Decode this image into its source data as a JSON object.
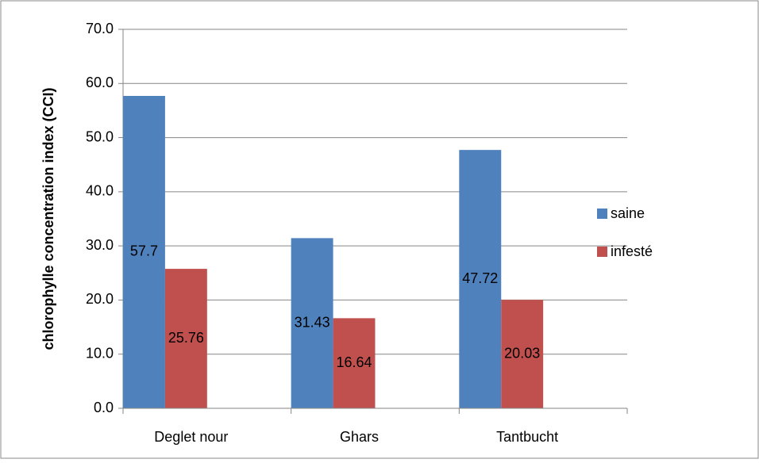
{
  "chart_data": {
    "type": "bar",
    "y_label": "chlorophylle concentration index (CCI)",
    "categories": [
      "Deglet nour",
      "Ghars",
      "Tantbucht"
    ],
    "series": [
      {
        "name": "saine",
        "color": "#4f81bd",
        "values": [
          57.7,
          31.43,
          47.72
        ]
      },
      {
        "name": "infesté",
        "color": "#c0504d",
        "values": [
          25.76,
          16.64,
          20.03
        ]
      }
    ],
    "ylim": [
      0,
      70
    ],
    "yticks": [
      {
        "value": 0,
        "label": "0.0"
      },
      {
        "value": 10,
        "label": "10.0"
      },
      {
        "value": 20,
        "label": "20.0"
      },
      {
        "value": 30,
        "label": "30.0"
      },
      {
        "value": 40,
        "label": "40.0"
      },
      {
        "value": 50,
        "label": "50.0"
      },
      {
        "value": 60,
        "label": "60.0"
      },
      {
        "value": 70,
        "label": "70.0"
      }
    ],
    "grid": true,
    "legend": "right"
  }
}
